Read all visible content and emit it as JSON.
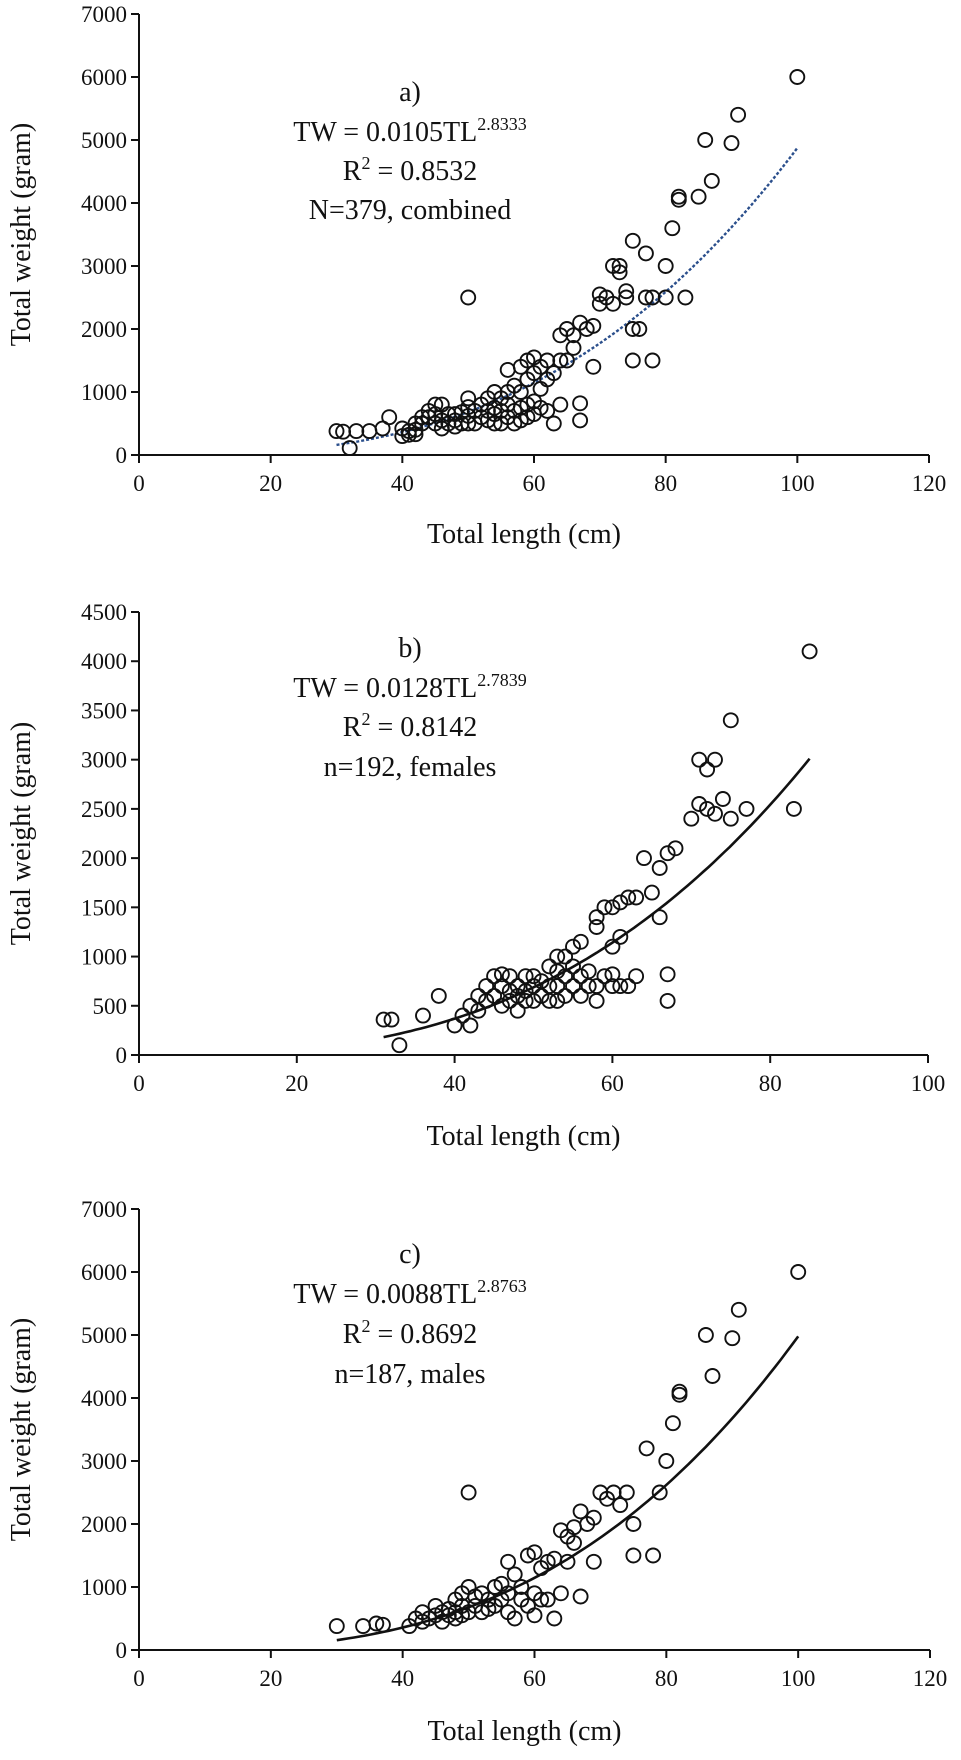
{
  "chart_data": [
    {
      "type": "scatter",
      "panel_label": "a)",
      "equation": {
        "lhs": "TW = 0.0105TL",
        "exponent": "2.8333"
      },
      "r2": {
        "prefix": "R",
        "sup": "2",
        "value": " = 0.8532"
      },
      "sample": "N=379, combined",
      "xlabel": "Total length (cm)",
      "ylabel": "Total weight (gram)",
      "xlim": [
        0,
        120
      ],
      "ylim": [
        0,
        7000
      ],
      "xticks": [
        "0",
        "20",
        "40",
        "60",
        "80",
        "100",
        "120"
      ],
      "yticks": [
        "0",
        "1000",
        "2000",
        "3000",
        "4000",
        "5000",
        "6000",
        "7000"
      ],
      "grid": false,
      "fit": {
        "a": 0.0105,
        "b": 2.8333,
        "x_range": [
          30,
          100
        ],
        "style": "dotted-blue",
        "color": "#2b4f8c"
      },
      "points": [
        [
          30,
          380
        ],
        [
          31,
          370
        ],
        [
          32,
          110
        ],
        [
          33,
          380
        ],
        [
          35,
          380
        ],
        [
          37,
          420
        ],
        [
          38,
          600
        ],
        [
          40,
          300
        ],
        [
          40,
          420
        ],
        [
          41,
          320
        ],
        [
          41,
          380
        ],
        [
          42,
          330
        ],
        [
          42,
          400
        ],
        [
          42,
          500
        ],
        [
          43,
          500
        ],
        [
          43,
          600
        ],
        [
          44,
          600
        ],
        [
          44,
          700
        ],
        [
          45,
          500
        ],
        [
          45,
          650
        ],
        [
          45,
          800
        ],
        [
          46,
          420
        ],
        [
          46,
          550
        ],
        [
          46,
          800
        ],
        [
          47,
          500
        ],
        [
          47,
          650
        ],
        [
          48,
          450
        ],
        [
          48,
          550
        ],
        [
          48,
          650
        ],
        [
          49,
          500
        ],
        [
          49,
          680
        ],
        [
          50,
          500
        ],
        [
          50,
          620
        ],
        [
          50,
          760
        ],
        [
          50,
          900
        ],
        [
          50,
          2500
        ],
        [
          51,
          500
        ],
        [
          51,
          700
        ],
        [
          52,
          600
        ],
        [
          52,
          800
        ],
        [
          53,
          550
        ],
        [
          53,
          700
        ],
        [
          53,
          900
        ],
        [
          54,
          500
        ],
        [
          54,
          650
        ],
        [
          54,
          750
        ],
        [
          54,
          1000
        ],
        [
          55,
          500
        ],
        [
          55,
          700
        ],
        [
          55,
          900
        ],
        [
          56,
          600
        ],
        [
          56,
          800
        ],
        [
          56,
          1000
        ],
        [
          56,
          1350
        ],
        [
          57,
          500
        ],
        [
          57,
          700
        ],
        [
          57,
          1100
        ],
        [
          58,
          550
        ],
        [
          58,
          750
        ],
        [
          58,
          1000
        ],
        [
          58,
          1400
        ],
        [
          59,
          600
        ],
        [
          59,
          800
        ],
        [
          59,
          1200
        ],
        [
          59,
          1500
        ],
        [
          60,
          650
        ],
        [
          60,
          850
        ],
        [
          60,
          1300
        ],
        [
          60,
          1550
        ],
        [
          61,
          750
        ],
        [
          61,
          1050
        ],
        [
          61,
          1400
        ],
        [
          62,
          700
        ],
        [
          62,
          1200
        ],
        [
          62,
          1500
        ],
        [
          63,
          500
        ],
        [
          63,
          1300
        ],
        [
          64,
          800
        ],
        [
          64,
          1500
        ],
        [
          64,
          1900
        ],
        [
          65,
          1500
        ],
        [
          65,
          2000
        ],
        [
          66,
          1700
        ],
        [
          66,
          1900
        ],
        [
          67,
          550
        ],
        [
          67,
          820
        ],
        [
          67,
          2100
        ],
        [
          68,
          2000
        ],
        [
          69,
          1400
        ],
        [
          69,
          2050
        ],
        [
          70,
          2400
        ],
        [
          70,
          2550
        ],
        [
          71,
          2500
        ],
        [
          72,
          3000
        ],
        [
          72,
          2400
        ],
        [
          73,
          2900
        ],
        [
          73,
          3000
        ],
        [
          74,
          2500
        ],
        [
          74,
          2600
        ],
        [
          75,
          2000
        ],
        [
          75,
          1500
        ],
        [
          75,
          3400
        ],
        [
          76,
          2000
        ],
        [
          77,
          2500
        ],
        [
          77,
          3200
        ],
        [
          78,
          1500
        ],
        [
          78,
          2500
        ],
        [
          80,
          3000
        ],
        [
          80,
          2500
        ],
        [
          81,
          3600
        ],
        [
          82,
          4050
        ],
        [
          82,
          4100
        ],
        [
          83,
          2500
        ],
        [
          85,
          4100
        ],
        [
          86,
          5000
        ],
        [
          87,
          4350
        ],
        [
          90,
          4950
        ],
        [
          91,
          5400
        ],
        [
          100,
          6000
        ]
      ]
    },
    {
      "type": "scatter",
      "panel_label": "b)",
      "equation": {
        "lhs": "TW = 0.0128TL",
        "exponent": "2.7839"
      },
      "r2": {
        "prefix": "R",
        "sup": "2",
        "value": " = 0.8142"
      },
      "sample": "n=192, females",
      "xlabel": "Total length (cm)",
      "ylabel": "Total weight (gram)",
      "xlim": [
        0,
        100
      ],
      "ylim": [
        0,
        4500
      ],
      "xticks": [
        "0",
        "20",
        "40",
        "60",
        "80",
        "100"
      ],
      "yticks": [
        "0",
        "500",
        "1000",
        "1500",
        "2000",
        "2500",
        "3000",
        "3500",
        "4000",
        "4500"
      ],
      "grid": false,
      "fit": {
        "a": 0.0128,
        "b": 2.7839,
        "x_range": [
          31,
          85
        ],
        "style": "solid",
        "color": "#111111"
      },
      "points": [
        [
          31,
          360
        ],
        [
          32,
          360
        ],
        [
          33,
          100
        ],
        [
          36,
          400
        ],
        [
          38,
          600
        ],
        [
          40,
          300
        ],
        [
          41,
          400
        ],
        [
          42,
          300
        ],
        [
          42,
          500
        ],
        [
          43,
          450
        ],
        [
          43,
          600
        ],
        [
          44,
          550
        ],
        [
          44,
          700
        ],
        [
          45,
          600
        ],
        [
          45,
          800
        ],
        [
          46,
          500
        ],
        [
          46,
          700
        ],
        [
          46,
          820
        ],
        [
          47,
          550
        ],
        [
          47,
          650
        ],
        [
          47,
          800
        ],
        [
          48,
          450
        ],
        [
          48,
          600
        ],
        [
          48,
          700
        ],
        [
          49,
          550
        ],
        [
          49,
          650
        ],
        [
          49,
          800
        ],
        [
          50,
          550
        ],
        [
          50,
          700
        ],
        [
          50,
          800
        ],
        [
          51,
          600
        ],
        [
          51,
          750
        ],
        [
          52,
          550
        ],
        [
          52,
          700
        ],
        [
          52,
          900
        ],
        [
          53,
          550
        ],
        [
          53,
          700
        ],
        [
          53,
          850
        ],
        [
          53,
          1000
        ],
        [
          54,
          600
        ],
        [
          54,
          800
        ],
        [
          54,
          1000
        ],
        [
          55,
          700
        ],
        [
          55,
          900
        ],
        [
          55,
          1100
        ],
        [
          56,
          600
        ],
        [
          56,
          800
        ],
        [
          56,
          1150
        ],
        [
          57,
          700
        ],
        [
          57,
          850
        ],
        [
          58,
          550
        ],
        [
          58,
          700
        ],
        [
          58,
          1300
        ],
        [
          58,
          1400
        ],
        [
          59,
          800
        ],
        [
          59,
          1500
        ],
        [
          60,
          700
        ],
        [
          60,
          820
        ],
        [
          60,
          1100
        ],
        [
          60,
          1500
        ],
        [
          61,
          700
        ],
        [
          61,
          1200
        ],
        [
          61,
          1550
        ],
        [
          62,
          700
        ],
        [
          62,
          1600
        ],
        [
          63,
          800
        ],
        [
          63,
          1600
        ],
        [
          64,
          2000
        ],
        [
          65,
          1650
        ],
        [
          66,
          1400
        ],
        [
          66,
          1900
        ],
        [
          67,
          550
        ],
        [
          67,
          820
        ],
        [
          67,
          2050
        ],
        [
          68,
          2100
        ],
        [
          70,
          2400
        ],
        [
          71,
          2550
        ],
        [
          71,
          3000
        ],
        [
          72,
          2500
        ],
        [
          72,
          2900
        ],
        [
          73,
          2450
        ],
        [
          73,
          3000
        ],
        [
          74,
          2600
        ],
        [
          75,
          2400
        ],
        [
          75,
          3400
        ],
        [
          77,
          2500
        ],
        [
          83,
          2500
        ],
        [
          85,
          4100
        ]
      ]
    },
    {
      "type": "scatter",
      "panel_label": "c)",
      "equation": {
        "lhs": "TW = 0.0088TL",
        "exponent": "2.8763"
      },
      "r2": {
        "prefix": "R",
        "sup": "2",
        "value": " = 0.8692"
      },
      "sample": "n=187, males",
      "xlabel": "Total length (cm)",
      "ylabel": "Total weight (gram)",
      "xlim": [
        0,
        120
      ],
      "ylim": [
        0,
        7000
      ],
      "xticks": [
        "0",
        "20",
        "40",
        "60",
        "80",
        "100",
        "120"
      ],
      "yticks": [
        "0",
        "1000",
        "2000",
        "3000",
        "4000",
        "5000",
        "6000",
        "7000"
      ],
      "grid": false,
      "fit": {
        "a": 0.0088,
        "b": 2.8763,
        "x_range": [
          30,
          100
        ],
        "style": "solid",
        "color": "#111111"
      },
      "points": [
        [
          30,
          380
        ],
        [
          34,
          380
        ],
        [
          36,
          420
        ],
        [
          37,
          400
        ],
        [
          41,
          380
        ],
        [
          42,
          500
        ],
        [
          43,
          450
        ],
        [
          43,
          600
        ],
        [
          44,
          500
        ],
        [
          45,
          550
        ],
        [
          45,
          700
        ],
        [
          46,
          450
        ],
        [
          46,
          600
        ],
        [
          47,
          550
        ],
        [
          47,
          650
        ],
        [
          48,
          500
        ],
        [
          48,
          600
        ],
        [
          48,
          800
        ],
        [
          49,
          550
        ],
        [
          49,
          700
        ],
        [
          49,
          900
        ],
        [
          50,
          600
        ],
        [
          50,
          1000
        ],
        [
          50,
          2500
        ],
        [
          51,
          700
        ],
        [
          51,
          850
        ],
        [
          52,
          600
        ],
        [
          52,
          900
        ],
        [
          53,
          650
        ],
        [
          53,
          800
        ],
        [
          54,
          700
        ],
        [
          54,
          1000
        ],
        [
          55,
          800
        ],
        [
          55,
          1050
        ],
        [
          56,
          600
        ],
        [
          56,
          900
        ],
        [
          56,
          1400
        ],
        [
          57,
          500
        ],
        [
          57,
          1200
        ],
        [
          58,
          800
        ],
        [
          58,
          1000
        ],
        [
          59,
          700
        ],
        [
          59,
          1500
        ],
        [
          60,
          550
        ],
        [
          60,
          900
        ],
        [
          60,
          1550
        ],
        [
          61,
          800
        ],
        [
          61,
          1300
        ],
        [
          62,
          800
        ],
        [
          62,
          1400
        ],
        [
          63,
          500
        ],
        [
          63,
          1450
        ],
        [
          64,
          900
        ],
        [
          64,
          1900
        ],
        [
          65,
          1400
        ],
        [
          65,
          1800
        ],
        [
          66,
          1700
        ],
        [
          66,
          1950
        ],
        [
          67,
          850
        ],
        [
          67,
          2200
        ],
        [
          68,
          2000
        ],
        [
          69,
          1400
        ],
        [
          69,
          2100
        ],
        [
          70,
          2500
        ],
        [
          71,
          2400
        ],
        [
          72,
          2500
        ],
        [
          73,
          2300
        ],
        [
          74,
          2500
        ],
        [
          75,
          2000
        ],
        [
          75,
          1500
        ],
        [
          77,
          3200
        ],
        [
          78,
          1500
        ],
        [
          79,
          2500
        ],
        [
          80,
          3000
        ],
        [
          81,
          3600
        ],
        [
          82,
          4050
        ],
        [
          82,
          4100
        ],
        [
          86,
          5000
        ],
        [
          87,
          4350
        ],
        [
          90,
          4950
        ],
        [
          91,
          5400
        ],
        [
          100,
          6000
        ]
      ]
    }
  ]
}
